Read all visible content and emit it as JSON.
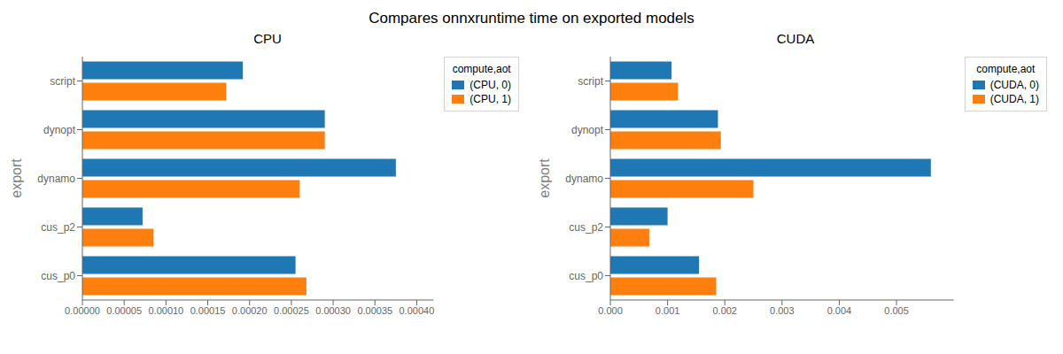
{
  "title": "Compares onnxruntime time on exported models",
  "chart_data": [
    {
      "type": "bar",
      "orientation": "horizontal",
      "title": "CPU",
      "ylabel": "export",
      "legend_title": "compute,aot",
      "legend": "upper right",
      "grid": false,
      "categories": [
        "cus_p0",
        "cus_p2",
        "dynamo",
        "dynopt",
        "script"
      ],
      "series": [
        {
          "name": "(CPU, 0)",
          "color": "#1f77b4",
          "values": [
            0.000255,
            7.2e-05,
            0.000375,
            0.00029,
            0.000192
          ]
        },
        {
          "name": "(CPU, 1)",
          "color": "#ff7f0e",
          "values": [
            0.000268,
            8.5e-05,
            0.00026,
            0.00029,
            0.000172
          ]
        }
      ],
      "xlim": [
        0,
        0.00042
      ],
      "xticks": [
        {
          "value": 0.0,
          "label": "0.00000"
        },
        5e-05,
        {
          "value": 0.0001,
          "label": "0.00010"
        },
        0.00015,
        {
          "value": 0.0002,
          "label": "0.00020"
        },
        0.00025,
        {
          "value": 0.0003,
          "label": "0.00030"
        },
        0.00035,
        {
          "value": 0.0004,
          "label": "0.00040"
        }
      ]
    },
    {
      "type": "bar",
      "orientation": "horizontal",
      "title": "CUDA",
      "ylabel": "export",
      "legend_title": "compute,aot",
      "legend": "upper right",
      "grid": false,
      "categories": [
        "cus_p0",
        "cus_p2",
        "dynamo",
        "dynopt",
        "script"
      ],
      "series": [
        {
          "name": "(CUDA, 0)",
          "color": "#1f77b4",
          "values": [
            0.00155,
            0.001,
            0.0056,
            0.00188,
            0.00107
          ]
        },
        {
          "name": "(CUDA, 1)",
          "color": "#ff7f0e",
          "values": [
            0.00185,
            0.00068,
            0.0025,
            0.00193,
            0.00118
          ]
        }
      ],
      "xlim": [
        0,
        0.006
      ],
      "xticks": [
        {
          "value": 0.0,
          "label": "0.000"
        },
        0.001,
        0.002,
        0.003,
        0.004,
        0.005
      ]
    }
  ]
}
